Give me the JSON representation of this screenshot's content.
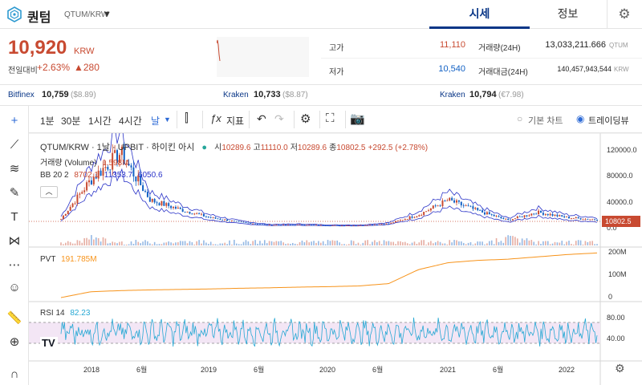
{
  "header": {
    "coin_name": "퀀텀",
    "pair": "QTUM/KRW",
    "tabs": [
      {
        "label": "시세"
      },
      {
        "label": "정보"
      }
    ],
    "icons": {
      "logo": "qtum-logo-icon",
      "dropdown": "chevron-down-icon",
      "settings": "gear-icon"
    }
  },
  "price": {
    "current": "10,920",
    "unit": "KRW",
    "prev_label": "전일대비",
    "change_pct": "+2.63%",
    "change_amt": "▲280"
  },
  "stats": {
    "high_label": "고가",
    "high": "11,110",
    "low_label": "저가",
    "low": "10,540",
    "volume_label": "거래량(24H)",
    "volume": "13,033,211.666",
    "volume_unit": "QTUM",
    "amount_label": "거래대금(24H)",
    "amount": "140,457,943,544",
    "amount_unit": "KRW"
  },
  "exchanges": [
    {
      "name": "Bitfinex",
      "value": "10,759",
      "sub": "($8.89)"
    },
    {
      "name": "Kraken",
      "value": "10,733",
      "sub": "($8.87)"
    },
    {
      "name": "Kraken",
      "value": "10,794",
      "sub": "(€7.98)"
    }
  ],
  "toolbar": {
    "intervals": [
      "1분",
      "30분",
      "1시간",
      "4시간",
      "날"
    ],
    "indicator_label": "지표",
    "chart_basic": "기본 차트",
    "chart_trading": "트레이딩뷰"
  },
  "chart": {
    "title": "QTUM/KRW · 1날 · UPBIT · 하이킨 아시",
    "ohlc": {
      "o_label": "시",
      "o": "10289.6",
      "h_label": "고",
      "h": "11110.0",
      "l_label": "저",
      "l": "10289.6",
      "c_label": "종",
      "c": "10802.5",
      "chg": "+292.5 (+2.78%)"
    },
    "volume_label": "거래량 (Volume)",
    "volume_value": "1.598M",
    "bb_label": "BB 20 2",
    "bb_values": [
      "8702.1",
      "11353.7",
      "6050.6"
    ],
    "last_price": "10802.5",
    "price_ticks": [
      "120000.0",
      "80000.0",
      "40000.0",
      "0.0"
    ],
    "pvt_label": "PVT",
    "pvt_value": "191.785M",
    "pvt_ticks": [
      "200M",
      "100M",
      "0"
    ],
    "rsi_label": "RSI 14",
    "rsi_value": "82.23",
    "rsi_ticks": [
      "80.00",
      "40.00"
    ],
    "x_ticks": [
      "2018",
      "6월",
      "2019",
      "6월",
      "2020",
      "6월",
      "2021",
      "6월",
      "2022"
    ],
    "colors": {
      "up": "#c84a31",
      "down": "#1261c4",
      "bb": "#2a33c8",
      "pvt": "#f7931a",
      "rsi": "#26a8d4",
      "rsi_band": "#f3e6f5"
    }
  },
  "chart_data": {
    "type": "line",
    "title": "QTUM/KRW · 1날 · UPBIT · 하이킨 아시",
    "x": [
      "2017-09",
      "2017-12",
      "2018-01",
      "2018-02",
      "2018-04",
      "2018-06",
      "2018-09",
      "2019-01",
      "2019-06",
      "2020-01",
      "2020-06",
      "2021-01",
      "2021-03",
      "2021-04",
      "2021-05",
      "2021-07",
      "2021-11",
      "2022-01",
      "2022-03"
    ],
    "series": [
      {
        "name": "QTUM/KRW",
        "values": [
          12000,
          70000,
          110000,
          40000,
          26000,
          14000,
          7000,
          3000,
          3500,
          2500,
          2300,
          5000,
          18000,
          40000,
          24000,
          10000,
          22000,
          14000,
          10802.5
        ]
      },
      {
        "name": "PVT",
        "values": [
          0,
          25000000,
          30000000,
          33000000,
          35000000,
          37000000,
          40000000,
          42000000,
          45000000,
          47000000,
          50000000,
          60000000,
          120000000,
          150000000,
          160000000,
          165000000,
          175000000,
          185000000,
          191785000
        ]
      }
    ],
    "ylim": [
      0,
      130000
    ]
  }
}
